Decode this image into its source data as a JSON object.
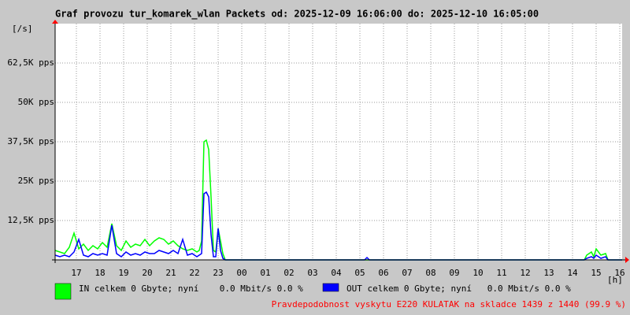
{
  "chart_data": {
    "type": "line",
    "title": "Graf provozu tur_komarek_wlan Packets od: 2025-12-09 16:06:00 do: 2025-12-10 16:05:00",
    "y_unit": "[/s]",
    "x_unit": "[h]",
    "note": "Pravdepodobnost vyskytu E220 KULATAK na skladce 1439 z 1440 (99.9 %)",
    "grid": true,
    "xlim": [
      16.1,
      40.1
    ],
    "ylim": [
      0,
      75000
    ],
    "xticks": [
      {
        "value": 17,
        "label": "17"
      },
      {
        "value": 18,
        "label": "18"
      },
      {
        "value": 19,
        "label": "19"
      },
      {
        "value": 20,
        "label": "20"
      },
      {
        "value": 21,
        "label": "21"
      },
      {
        "value": 22,
        "label": "22"
      },
      {
        "value": 23,
        "label": "23"
      },
      {
        "value": 24,
        "label": "00"
      },
      {
        "value": 25,
        "label": "01"
      },
      {
        "value": 26,
        "label": "02"
      },
      {
        "value": 27,
        "label": "03"
      },
      {
        "value": 28,
        "label": "04"
      },
      {
        "value": 29,
        "label": "05"
      },
      {
        "value": 30,
        "label": "06"
      },
      {
        "value": 31,
        "label": "07"
      },
      {
        "value": 32,
        "label": "08"
      },
      {
        "value": 33,
        "label": "09"
      },
      {
        "value": 34,
        "label": "10"
      },
      {
        "value": 35,
        "label": "11"
      },
      {
        "value": 36,
        "label": "12"
      },
      {
        "value": 37,
        "label": "13"
      },
      {
        "value": 38,
        "label": "14"
      },
      {
        "value": 39,
        "label": "15"
      },
      {
        "value": 40,
        "label": "16"
      }
    ],
    "yticks": [
      {
        "value": 12500,
        "label": "12,5K pps"
      },
      {
        "value": 25000,
        "label": "25K pps"
      },
      {
        "value": 37500,
        "label": "37,5K pps"
      },
      {
        "value": 50000,
        "label": "50K pps"
      },
      {
        "value": 62500,
        "label": "62,5K pps"
      }
    ],
    "x": [
      16.1,
      16.3,
      16.5,
      16.7,
      16.9,
      17.1,
      17.3,
      17.5,
      17.7,
      17.9,
      18.1,
      18.3,
      18.5,
      18.7,
      18.9,
      19.1,
      19.3,
      19.5,
      19.7,
      19.9,
      20.1,
      20.3,
      20.5,
      20.7,
      20.9,
      21.1,
      21.3,
      21.5,
      21.7,
      21.9,
      22.1,
      22.2,
      22.3,
      22.4,
      22.5,
      22.6,
      22.7,
      22.8,
      22.9,
      23.0,
      23.1,
      23.2,
      23.3,
      24,
      26,
      29.2,
      29.3,
      29.4,
      32,
      36,
      38.5,
      38.6,
      38.8,
      38.9,
      39.0,
      39.2,
      39.4,
      39.5,
      40.1
    ],
    "series": [
      {
        "name": "IN celkem 0 Gbyte; nyní    0.0 Mbit/s 0.0 %",
        "color": "#00ff00",
        "values": [
          3000,
          2500,
          2000,
          4000,
          8500,
          3500,
          5000,
          3000,
          4500,
          3500,
          5500,
          4000,
          11500,
          4500,
          3000,
          6000,
          4000,
          5000,
          4500,
          6500,
          4500,
          6000,
          7000,
          6500,
          5000,
          6000,
          4500,
          3500,
          3000,
          3500,
          2500,
          3000,
          6000,
          37500,
          38000,
          35000,
          20000,
          3000,
          2500,
          10000,
          6000,
          2000,
          0,
          0,
          0,
          0,
          0,
          0,
          0,
          0,
          0,
          1500,
          2500,
          1000,
          3500,
          1500,
          2000,
          0,
          0
        ]
      },
      {
        "name": "OUT celkem 0 Gbyte; nyní   0.0 Mbit/s 0.0 %",
        "color": "#0000ff",
        "values": [
          1500,
          1000,
          1500,
          1000,
          2500,
          6500,
          1500,
          1000,
          2000,
          1500,
          2000,
          1500,
          11000,
          2000,
          1000,
          2500,
          1500,
          2000,
          1500,
          2500,
          2000,
          2000,
          3000,
          2500,
          2000,
          3000,
          2000,
          6500,
          1500,
          2000,
          1000,
          1500,
          2000,
          21000,
          21500,
          20000,
          8000,
          1000,
          1000,
          10000,
          3000,
          500,
          0,
          0,
          0,
          0,
          750,
          0,
          0,
          0,
          0,
          500,
          1000,
          500,
          1500,
          500,
          1000,
          0,
          0
        ]
      }
    ]
  }
}
